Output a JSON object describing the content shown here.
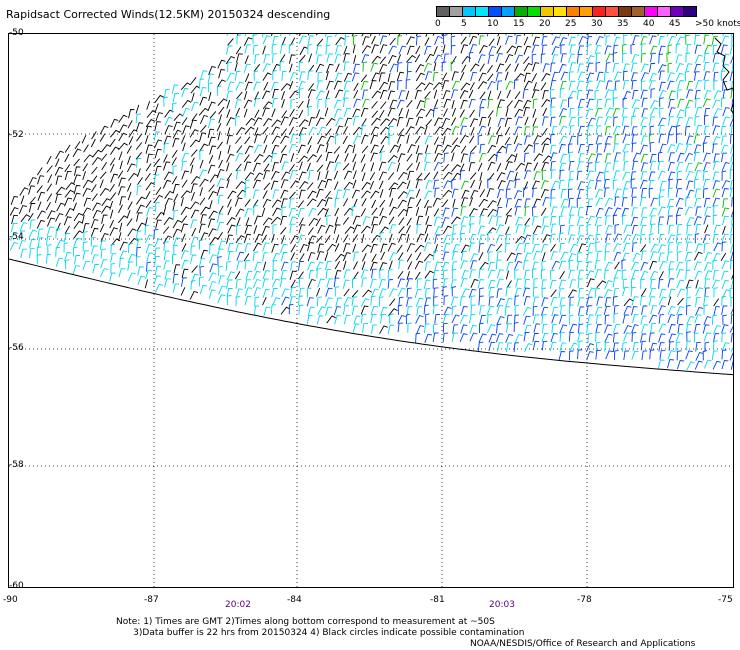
{
  "title": "Rapidsact Corrected Winds(12.5KM) 20150324 descending",
  "legend": {
    "colors": [
      "#606060",
      "#a0a0a0",
      "#00c8ff",
      "#00e8ff",
      "#0050ff",
      "#00a0ff",
      "#00b000",
      "#00e000",
      "#f0c800",
      "#ffe000",
      "#ff8000",
      "#ffa000",
      "#ff2020",
      "#ff5040",
      "#7a3a10",
      "#a06030",
      "#ff00ff",
      "#ff60ff",
      "#7000c0",
      "#300080"
    ],
    "labels": [
      "0",
      "5",
      "10",
      "15",
      "20",
      "25",
      "30",
      "35",
      "40",
      "45",
      ">50 knots"
    ]
  },
  "axes": {
    "lat_labels": [
      "-50",
      "-52",
      "-54",
      "-56",
      "-58",
      "-60"
    ],
    "lon_labels": [
      "-90",
      "-87",
      "-84",
      "-81",
      "-78",
      "-75"
    ]
  },
  "times": [
    "20:02",
    "20:03"
  ],
  "notes": {
    "line1": "Note: 1) Times are GMT 2)Times along bottom correspond to measurement at ~50S",
    "line2": "      3)Data buffer is 22 hrs from 20150324 4) Black circles indicate possible contamination"
  },
  "credit": "NOAA/NESDIS/Office of Research and Applications"
}
